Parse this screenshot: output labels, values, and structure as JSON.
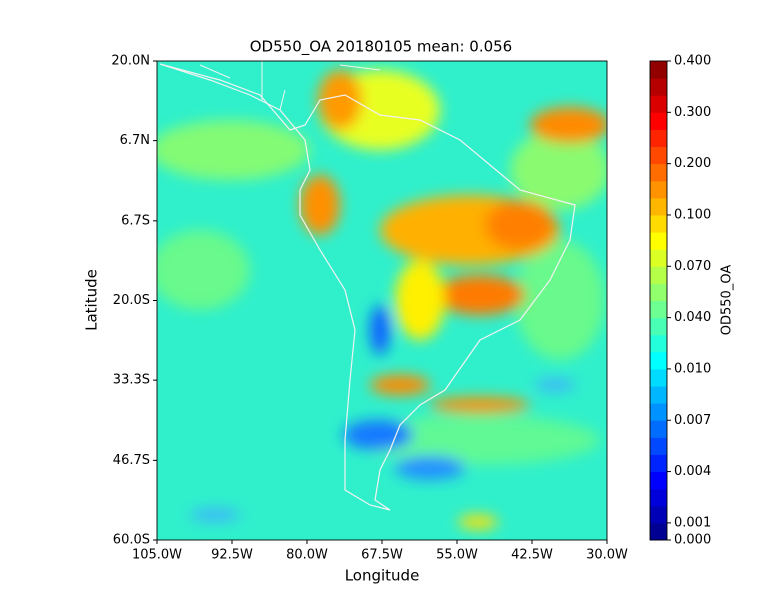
{
  "chart_data": {
    "type": "map",
    "title": "OD550_OA 20180105 mean: 0.056",
    "xlabel": "Longitude",
    "ylabel": "Latitude",
    "xlim": [
      -105,
      -30
    ],
    "ylim": [
      -60,
      20
    ],
    "xticks": [
      {
        "value": -105,
        "label": "105.0W"
      },
      {
        "value": -92.5,
        "label": "92.5W"
      },
      {
        "value": -80,
        "label": "80.0W"
      },
      {
        "value": -67.5,
        "label": "67.5W"
      },
      {
        "value": -55,
        "label": "55.0W"
      },
      {
        "value": -42.5,
        "label": "42.5W"
      },
      {
        "value": -30,
        "label": "30.0W"
      }
    ],
    "yticks": [
      {
        "value": 20,
        "label": "20.0N"
      },
      {
        "value": 6.7,
        "label": "6.7N"
      },
      {
        "value": -6.7,
        "label": "6.7S"
      },
      {
        "value": -20,
        "label": "20.0S"
      },
      {
        "value": -33.3,
        "label": "33.3S"
      },
      {
        "value": -46.7,
        "label": "46.7S"
      },
      {
        "value": -60,
        "label": "60.0S"
      }
    ],
    "colorbar": {
      "label": "OD550_OA",
      "cmap": "jet",
      "levels": [
        0,
        0.001,
        0.002,
        0.003,
        0.004,
        0.005,
        0.006,
        0.007,
        0.008,
        0.009,
        0.01,
        0.02,
        0.03,
        0.04,
        0.05,
        0.06,
        0.07,
        0.08,
        0.09,
        0.1,
        0.13,
        0.16,
        0.2,
        0.23,
        0.26,
        0.3,
        0.33,
        0.36,
        0.4
      ],
      "ticks": [
        {
          "value": 0.4,
          "label": "0.400"
        },
        {
          "value": 0.3,
          "label": "0.300"
        },
        {
          "value": 0.2,
          "label": "0.200"
        },
        {
          "value": 0.1,
          "label": "0.100"
        },
        {
          "value": 0.07,
          "label": "0.070"
        },
        {
          "value": 0.04,
          "label": "0.040"
        },
        {
          "value": 0.01,
          "label": "0.010"
        },
        {
          "value": 0.007,
          "label": "0.007"
        },
        {
          "value": 0.004,
          "label": "0.004"
        },
        {
          "value": 0.001,
          "label": "0.001"
        },
        {
          "value": 0,
          "label": "0.000"
        }
      ]
    }
  }
}
